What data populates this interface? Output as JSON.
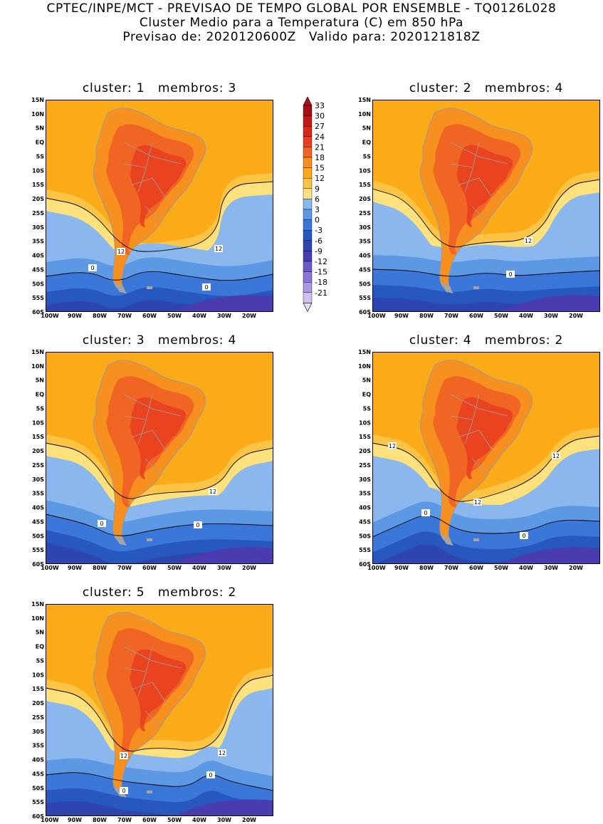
{
  "header": {
    "line1": "CPTEC/INPE/MCT - PREVISAO DE TEMPO GLOBAL POR ENSEMBLE - TQ0126L028",
    "line2": "Cluster Medio para a Temperatura (C) em 850 hPa",
    "line3": "Previsao de: 2020120600Z   Valido para: 2020121818Z"
  },
  "lat_labels": [
    "15N",
    "10N",
    "5N",
    "EQ",
    "5S",
    "10S",
    "15S",
    "20S",
    "25S",
    "30S",
    "35S",
    "40S",
    "45S",
    "50S",
    "55S",
    "60S"
  ],
  "lon_labels": [
    "100W",
    "90W",
    "80W",
    "70W",
    "60W",
    "50W",
    "40W",
    "30W",
    "20W"
  ],
  "panels": [
    {
      "title": "cluster: 1   membros: 3",
      "contour_labels": [
        "12",
        "12",
        "0",
        "0"
      ]
    },
    {
      "title": "cluster: 2   membros: 4",
      "contour_labels": [
        "12",
        "0"
      ]
    },
    {
      "title": "cluster: 3   membros: 4",
      "contour_labels": [
        "12",
        "0",
        "0"
      ]
    },
    {
      "title": "cluster: 4   membros: 2",
      "contour_labels": [
        "12",
        "12",
        "12",
        "0",
        "0"
      ]
    },
    {
      "title": "cluster: 5   membros: 2",
      "contour_labels": [
        "12",
        "12",
        "0",
        "0"
      ]
    }
  ],
  "colorbar": {
    "labels": [
      "33",
      "30",
      "27",
      "24",
      "21",
      "18",
      "15",
      "12",
      "9",
      "6",
      "3",
      "0",
      "-3",
      "-6",
      "-9",
      "-12",
      "-15",
      "-18",
      "-21"
    ],
    "colors": [
      "#a50f15",
      "#c21a1a",
      "#d8281e",
      "#e8401f",
      "#f06424",
      "#f7901e",
      "#fbaa18",
      "#fcc445",
      "#fde17c",
      "#8ab8ee",
      "#5c98e4",
      "#3a77d8",
      "#2658c0",
      "#2e45b0",
      "#4a3cb0",
      "#6b58c8",
      "#8a76d6",
      "#ab98e2",
      "#cdbfee"
    ]
  }
}
